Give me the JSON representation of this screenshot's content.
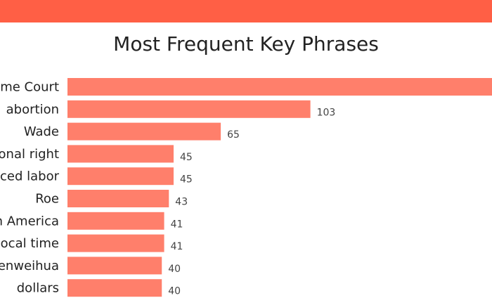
{
  "colors": {
    "header": "#ff5f45",
    "bar": "#ff7f6b"
  },
  "chart_data": {
    "type": "bar",
    "orientation": "horizontal",
    "title": "Most Frequent Key Phrases",
    "categories": [
      "me Court",
      "abortion",
      "Wade",
      "onal right",
      "ced labor",
      "Roe",
      "n America",
      "ocal time",
      "enweihua",
      "dollars"
    ],
    "values": [
      180,
      103,
      65,
      45,
      45,
      43,
      41,
      41,
      40,
      40
    ],
    "value_labels": [
      "",
      "103",
      "65",
      "45",
      "45",
      "43",
      "41",
      "41",
      "40",
      "40"
    ],
    "xlim": [
      0,
      180
    ],
    "grid": false,
    "legend": "none"
  }
}
